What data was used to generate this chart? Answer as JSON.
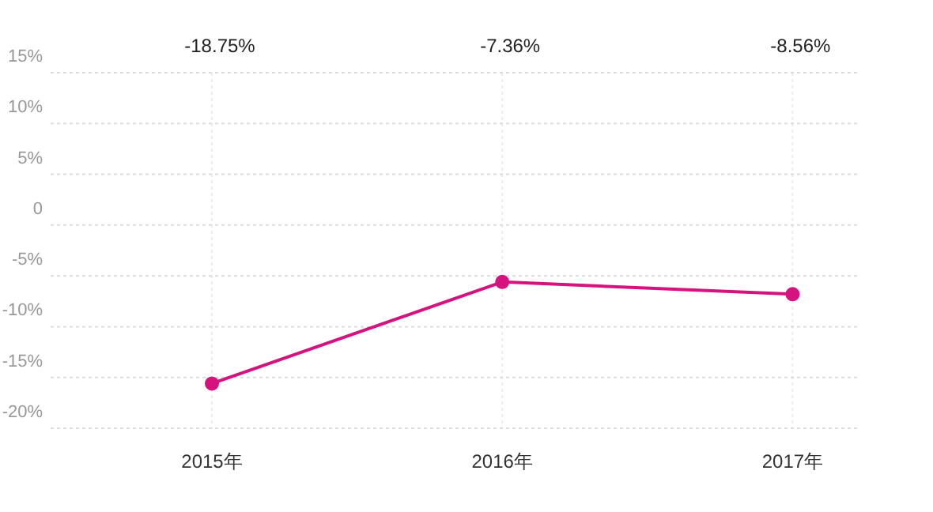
{
  "chart_data": {
    "type": "line",
    "categories": [
      "2015年",
      "2016年",
      "2017年"
    ],
    "series": [
      {
        "color": "#d6127e",
        "values": [
          -15.6,
          -5.6,
          -6.8
        ]
      }
    ],
    "annotations": [
      "-18.75%",
      "-7.36%",
      "-8.56%"
    ],
    "ylim": [
      -20,
      15
    ],
    "yticks": [
      {
        "value": 15,
        "label": "15%"
      },
      {
        "value": 10,
        "label": "10%"
      },
      {
        "value": 5,
        "label": "5%"
      },
      0,
      {
        "value": -5,
        "label": "-5%"
      },
      {
        "value": -10,
        "label": "-10%"
      },
      {
        "value": -15,
        "label": "-15%"
      },
      {
        "value": -20,
        "label": "-20%"
      }
    ],
    "grid": true,
    "marker": "circle",
    "line_style": "solid"
  }
}
